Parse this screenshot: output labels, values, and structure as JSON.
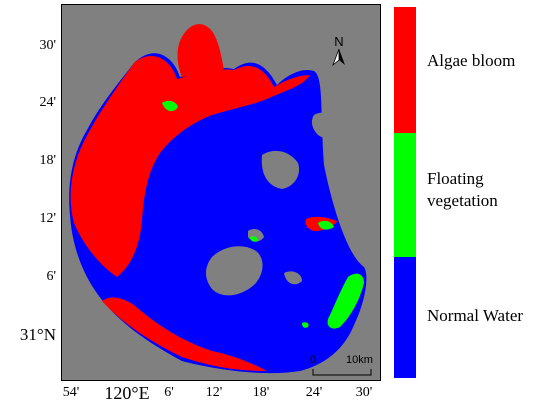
{
  "map": {
    "lat_labels": [
      "30'",
      "24'",
      "18'",
      "12'",
      "6'",
      "31°N"
    ],
    "lon_labels": [
      "54'",
      "120°E",
      "6'",
      "12'",
      "18'",
      "24'",
      "30'"
    ],
    "north_label": "N",
    "scale": {
      "start": "0",
      "end": "10km"
    }
  },
  "legend": {
    "items": [
      {
        "label": "Algae bloom",
        "color": "#ff0000"
      },
      {
        "label": "Floating vegetation",
        "line1": "Floating",
        "line2": "vegetation",
        "color": "#00ff00"
      },
      {
        "label": "Normal Water",
        "color": "#0000ff"
      }
    ]
  },
  "colors": {
    "background": "#808080",
    "algae": "#ff0000",
    "vegetation": "#00ff00",
    "water": "#0000ff"
  }
}
